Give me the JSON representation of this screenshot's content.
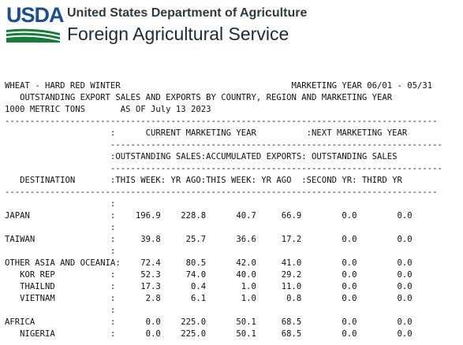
{
  "header": {
    "logo_text": "USDA",
    "department": "United States Department of Agriculture",
    "service": "Foreign Agricultural Service"
  },
  "report": {
    "lines": [
      "WHEAT - HARD RED WINTER                                  MARKETING YEAR 06/01 - 05/31",
      "   OUTSTANDING EXPORT SALES AND EXPORTS BY COUNTRY, REGION AND MARKETING YEAR",
      "1000 METRIC TONS       AS OF July 13 2023",
      "--------------------------------------------------------------------------------------",
      "                     :      CURRENT MARKETING YEAR          :NEXT MARKETING YEAR",
      "                     ------------------------------------------------------------------",
      "                     :OUTSTANDING SALES:ACCUMULATED EXPORTS: OUTSTANDING SALES",
      "                     ------------------------------------------------------------------",
      "   DESTINATION       :THIS WEEK: YR AGO:THIS WEEK: YR AGO  :SECOND YR: THIRD YR",
      "--------------------------------------------------------------------------------------",
      "                     :",
      "JAPAN                :    196.9    228.8      40.7     66.9        0.0        0.0",
      "                     :",
      "TAIWAN               :     39.8     25.7      36.6     17.2        0.0        0.0",
      "                     :",
      "OTHER ASIA AND OCEANIA:    72.4     80.5      42.0     41.0        0.0        0.0",
      "   KOR REP           :     52.3     74.0      40.0     29.2        0.0        0.0",
      "   THAILND           :     17.3      0.4       1.0     11.0        0.0        0.0",
      "   VIETNAM           :      2.8      6.1       1.0      0.8        0.0        0.0",
      "                     :",
      "AFRICA               :      0.0    225.0      50.1     68.5        0.0        0.0",
      "   NIGERIA           :      0.0    225.0      50.1     68.5        0.0        0.0"
    ]
  }
}
